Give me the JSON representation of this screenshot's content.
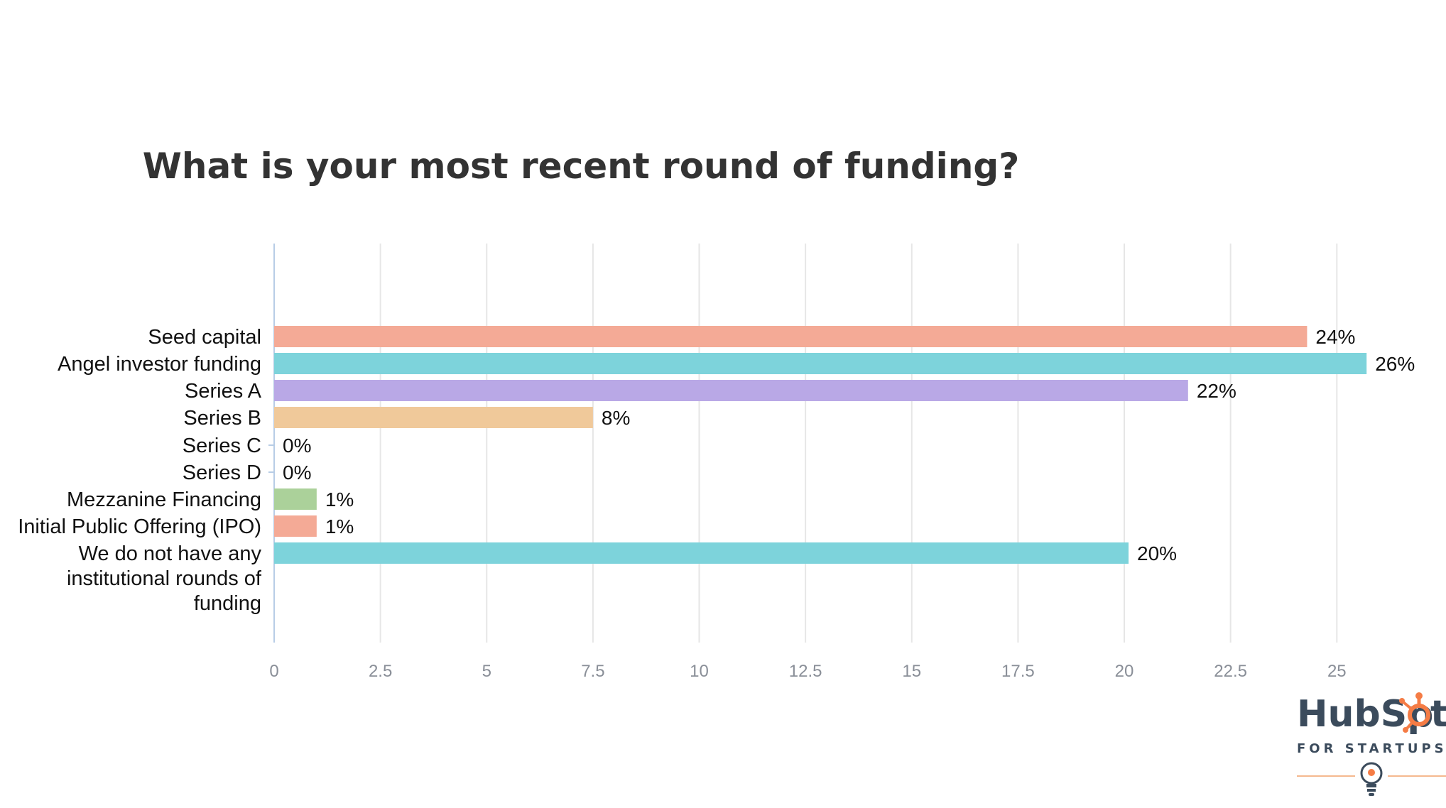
{
  "chart_data": {
    "type": "bar",
    "orientation": "horizontal",
    "title": "What is your most recent round of funding?",
    "categories": [
      "Seed capital",
      "Angel investor funding",
      "Series A",
      "Series B",
      "Series C",
      "Series D",
      "Mezzanine Financing",
      "Initial Public Offering (IPO)",
      "We do not have any institutional rounds of funding"
    ],
    "category_lines": [
      [
        "Seed capital"
      ],
      [
        "Angel investor funding"
      ],
      [
        "Series A"
      ],
      [
        "Series B"
      ],
      [
        "Series C"
      ],
      [
        "Series D"
      ],
      [
        "Mezzanine Financing"
      ],
      [
        "Initial Public Offering (IPO)"
      ],
      [
        "We do not have any",
        "institutional rounds of",
        "funding"
      ]
    ],
    "values": [
      24.3,
      25.7,
      21.5,
      7.5,
      0,
      0,
      1,
      1,
      20.1
    ],
    "data_labels": [
      "24%",
      "26%",
      "22%",
      "8%",
      "0%",
      "0%",
      "1%",
      "1%",
      "20%"
    ],
    "colors": [
      "#f4aa96",
      "#7dd3db",
      "#b9a8e6",
      "#f0c99a",
      "#f4aa96",
      "#7dd3db",
      "#abd19a",
      "#f4aa96",
      "#7dd3db"
    ],
    "xlim": [
      0,
      27
    ],
    "x_ticks": [
      0,
      2.5,
      5,
      7.5,
      10,
      12.5,
      15,
      17.5,
      20,
      22.5,
      25
    ],
    "x_tick_labels": [
      "0",
      "2.5",
      "5",
      "7.5",
      "10",
      "12.5",
      "15",
      "17.5",
      "20",
      "22.5",
      "25"
    ],
    "grid": true
  },
  "logo": {
    "wordmark": "HubSpot",
    "subtitle": "FOR STARTUPS",
    "accent_color": "#f57c45",
    "text_color": "#3b4b5c"
  }
}
